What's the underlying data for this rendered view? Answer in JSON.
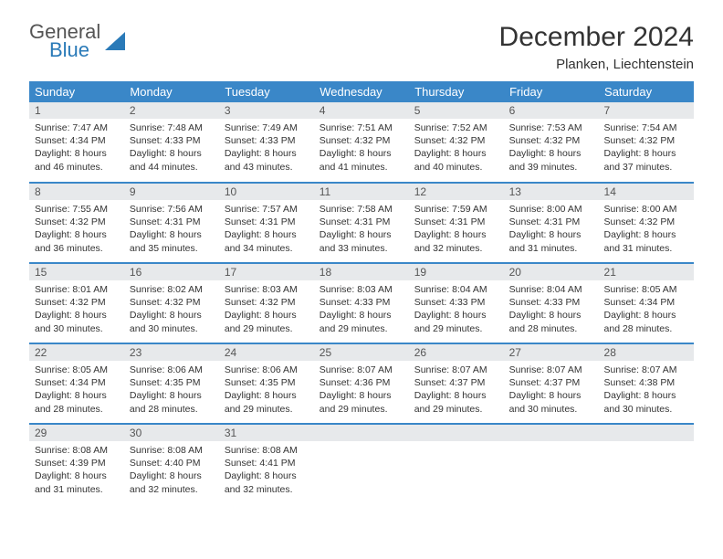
{
  "logo": {
    "word1": "General",
    "word2": "Blue",
    "brand_color": "#2a7ab8"
  },
  "header": {
    "title": "December 2024",
    "location": "Planken, Liechtenstein"
  },
  "colors": {
    "header_bg": "#3a87c8",
    "header_text": "#ffffff",
    "daynum_bg": "#e7e9eb",
    "row_border": "#3a87c8",
    "body_text": "#333333"
  },
  "calendar": {
    "columns": [
      "Sunday",
      "Monday",
      "Tuesday",
      "Wednesday",
      "Thursday",
      "Friday",
      "Saturday"
    ],
    "weeks": [
      [
        {
          "n": "1",
          "sunrise": "7:47 AM",
          "sunset": "4:34 PM",
          "daylight": "8 hours and 46 minutes."
        },
        {
          "n": "2",
          "sunrise": "7:48 AM",
          "sunset": "4:33 PM",
          "daylight": "8 hours and 44 minutes."
        },
        {
          "n": "3",
          "sunrise": "7:49 AM",
          "sunset": "4:33 PM",
          "daylight": "8 hours and 43 minutes."
        },
        {
          "n": "4",
          "sunrise": "7:51 AM",
          "sunset": "4:32 PM",
          "daylight": "8 hours and 41 minutes."
        },
        {
          "n": "5",
          "sunrise": "7:52 AM",
          "sunset": "4:32 PM",
          "daylight": "8 hours and 40 minutes."
        },
        {
          "n": "6",
          "sunrise": "7:53 AM",
          "sunset": "4:32 PM",
          "daylight": "8 hours and 39 minutes."
        },
        {
          "n": "7",
          "sunrise": "7:54 AM",
          "sunset": "4:32 PM",
          "daylight": "8 hours and 37 minutes."
        }
      ],
      [
        {
          "n": "8",
          "sunrise": "7:55 AM",
          "sunset": "4:32 PM",
          "daylight": "8 hours and 36 minutes."
        },
        {
          "n": "9",
          "sunrise": "7:56 AM",
          "sunset": "4:31 PM",
          "daylight": "8 hours and 35 minutes."
        },
        {
          "n": "10",
          "sunrise": "7:57 AM",
          "sunset": "4:31 PM",
          "daylight": "8 hours and 34 minutes."
        },
        {
          "n": "11",
          "sunrise": "7:58 AM",
          "sunset": "4:31 PM",
          "daylight": "8 hours and 33 minutes."
        },
        {
          "n": "12",
          "sunrise": "7:59 AM",
          "sunset": "4:31 PM",
          "daylight": "8 hours and 32 minutes."
        },
        {
          "n": "13",
          "sunrise": "8:00 AM",
          "sunset": "4:31 PM",
          "daylight": "8 hours and 31 minutes."
        },
        {
          "n": "14",
          "sunrise": "8:00 AM",
          "sunset": "4:32 PM",
          "daylight": "8 hours and 31 minutes."
        }
      ],
      [
        {
          "n": "15",
          "sunrise": "8:01 AM",
          "sunset": "4:32 PM",
          "daylight": "8 hours and 30 minutes."
        },
        {
          "n": "16",
          "sunrise": "8:02 AM",
          "sunset": "4:32 PM",
          "daylight": "8 hours and 30 minutes."
        },
        {
          "n": "17",
          "sunrise": "8:03 AM",
          "sunset": "4:32 PM",
          "daylight": "8 hours and 29 minutes."
        },
        {
          "n": "18",
          "sunrise": "8:03 AM",
          "sunset": "4:33 PM",
          "daylight": "8 hours and 29 minutes."
        },
        {
          "n": "19",
          "sunrise": "8:04 AM",
          "sunset": "4:33 PM",
          "daylight": "8 hours and 29 minutes."
        },
        {
          "n": "20",
          "sunrise": "8:04 AM",
          "sunset": "4:33 PM",
          "daylight": "8 hours and 28 minutes."
        },
        {
          "n": "21",
          "sunrise": "8:05 AM",
          "sunset": "4:34 PM",
          "daylight": "8 hours and 28 minutes."
        }
      ],
      [
        {
          "n": "22",
          "sunrise": "8:05 AM",
          "sunset": "4:34 PM",
          "daylight": "8 hours and 28 minutes."
        },
        {
          "n": "23",
          "sunrise": "8:06 AM",
          "sunset": "4:35 PM",
          "daylight": "8 hours and 28 minutes."
        },
        {
          "n": "24",
          "sunrise": "8:06 AM",
          "sunset": "4:35 PM",
          "daylight": "8 hours and 29 minutes."
        },
        {
          "n": "25",
          "sunrise": "8:07 AM",
          "sunset": "4:36 PM",
          "daylight": "8 hours and 29 minutes."
        },
        {
          "n": "26",
          "sunrise": "8:07 AM",
          "sunset": "4:37 PM",
          "daylight": "8 hours and 29 minutes."
        },
        {
          "n": "27",
          "sunrise": "8:07 AM",
          "sunset": "4:37 PM",
          "daylight": "8 hours and 30 minutes."
        },
        {
          "n": "28",
          "sunrise": "8:07 AM",
          "sunset": "4:38 PM",
          "daylight": "8 hours and 30 minutes."
        }
      ],
      [
        {
          "n": "29",
          "sunrise": "8:08 AM",
          "sunset": "4:39 PM",
          "daylight": "8 hours and 31 minutes."
        },
        {
          "n": "30",
          "sunrise": "8:08 AM",
          "sunset": "4:40 PM",
          "daylight": "8 hours and 32 minutes."
        },
        {
          "n": "31",
          "sunrise": "8:08 AM",
          "sunset": "4:41 PM",
          "daylight": "8 hours and 32 minutes."
        },
        {
          "empty": true
        },
        {
          "empty": true
        },
        {
          "empty": true
        },
        {
          "empty": true
        }
      ]
    ],
    "labels": {
      "sunrise": "Sunrise:",
      "sunset": "Sunset:",
      "daylight": "Daylight:"
    }
  }
}
